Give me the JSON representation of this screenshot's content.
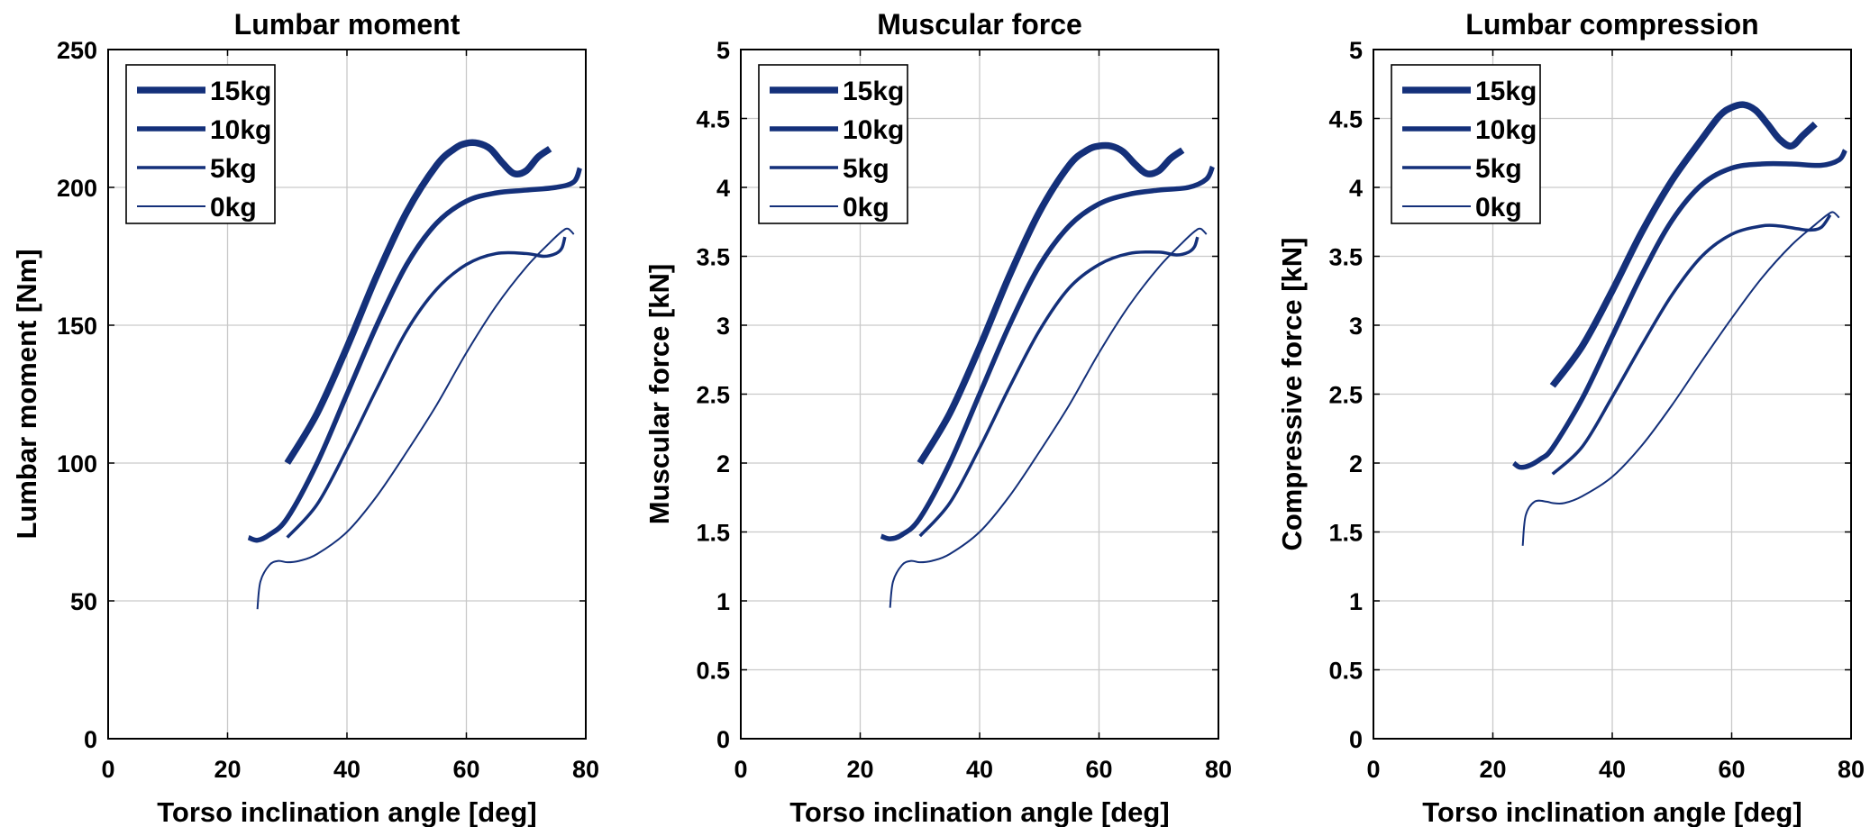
{
  "figure": {
    "series_color": "#14307a"
  },
  "chart_data": [
    {
      "type": "line",
      "title": "Lumbar moment",
      "xlabel": "Torso inclination angle [deg]",
      "ylabel": "Lumbar moment [Nm]",
      "xlim": [
        0,
        80
      ],
      "ylim": [
        0,
        250
      ],
      "xticks": [
        0,
        20,
        40,
        60,
        80
      ],
      "yticks": [
        0,
        50,
        100,
        150,
        200,
        250
      ],
      "xtick_labels": [
        "0",
        "20",
        "40",
        "60",
        "80"
      ],
      "ytick_labels": [
        "0",
        "50",
        "100",
        "150",
        "200",
        "250"
      ],
      "grid": true,
      "legend_position": "top-left",
      "series": [
        {
          "name": "15kg",
          "x": [
            30,
            35,
            40,
            45,
            50,
            55,
            58,
            60,
            62,
            64,
            66,
            68,
            70,
            72,
            74
          ],
          "y": [
            100,
            118,
            142,
            168,
            191,
            208,
            214,
            216,
            216,
            214,
            209,
            205,
            206,
            211,
            214
          ]
        },
        {
          "name": "10kg",
          "x": [
            23.5,
            25,
            27,
            30,
            35,
            40,
            45,
            50,
            55,
            60,
            65,
            70,
            75,
            78,
            79
          ],
          "y": [
            73,
            72,
            74,
            80,
            100,
            125,
            150,
            172,
            187,
            195,
            198,
            199,
            200,
            202,
            207
          ]
        },
        {
          "name": "5kg",
          "x": [
            30,
            35,
            40,
            45,
            50,
            55,
            60,
            65,
            70,
            73,
            75,
            76,
            76.5
          ],
          "y": [
            73,
            85,
            105,
            127,
            148,
            163,
            172,
            176,
            176,
            175,
            176,
            178,
            182
          ]
        },
        {
          "name": "0kg",
          "x": [
            25,
            25.5,
            27,
            28.5,
            30,
            32,
            35,
            40,
            45,
            50,
            55,
            60,
            65,
            70,
            74,
            76,
            77,
            78
          ],
          "y": [
            47,
            57,
            63,
            64.5,
            64,
            64.5,
            67,
            75,
            88,
            104,
            121,
            140,
            157,
            171,
            180,
            184,
            185,
            183
          ]
        }
      ]
    },
    {
      "type": "line",
      "title": "Muscular force",
      "xlabel": "Torso inclination angle [deg]",
      "ylabel": "Muscular force [kN]",
      "xlim": [
        0,
        80
      ],
      "ylim": [
        0,
        5
      ],
      "xticks": [
        0,
        20,
        40,
        60,
        80
      ],
      "yticks": [
        0,
        0.5,
        1,
        1.5,
        2,
        2.5,
        3,
        3.5,
        4,
        4.5,
        5
      ],
      "xtick_labels": [
        "0",
        "20",
        "40",
        "60",
        "80"
      ],
      "ytick_labels": [
        "0",
        "0.5",
        "1",
        "1.5",
        "2",
        "2.5",
        "3",
        "3.5",
        "4",
        "4.5",
        "5"
      ],
      "grid": true,
      "legend_position": "top-left",
      "series": [
        {
          "name": "15kg",
          "x": [
            30,
            35,
            40,
            45,
            50,
            55,
            58,
            60,
            62,
            64,
            66,
            68,
            70,
            72,
            74
          ],
          "y": [
            2.0,
            2.36,
            2.84,
            3.36,
            3.82,
            4.16,
            4.27,
            4.3,
            4.3,
            4.26,
            4.17,
            4.1,
            4.12,
            4.21,
            4.27
          ]
        },
        {
          "name": "10kg",
          "x": [
            23.5,
            25,
            27,
            30,
            35,
            40,
            45,
            50,
            55,
            60,
            65,
            70,
            75,
            78,
            79
          ],
          "y": [
            1.47,
            1.45,
            1.48,
            1.6,
            2.0,
            2.5,
            3.0,
            3.43,
            3.72,
            3.88,
            3.95,
            3.98,
            4.0,
            4.06,
            4.15
          ]
        },
        {
          "name": "5kg",
          "x": [
            30,
            35,
            40,
            45,
            50,
            55,
            60,
            65,
            70,
            73,
            75,
            76,
            76.5
          ],
          "y": [
            1.47,
            1.71,
            2.11,
            2.55,
            2.96,
            3.27,
            3.44,
            3.52,
            3.53,
            3.51,
            3.53,
            3.57,
            3.64
          ]
        },
        {
          "name": "0kg",
          "x": [
            25,
            25.5,
            27,
            28.5,
            30,
            32,
            35,
            40,
            45,
            50,
            55,
            60,
            65,
            70,
            74,
            76,
            77,
            78
          ],
          "y": [
            0.95,
            1.14,
            1.26,
            1.29,
            1.28,
            1.29,
            1.34,
            1.5,
            1.76,
            2.08,
            2.42,
            2.8,
            3.14,
            3.42,
            3.6,
            3.68,
            3.7,
            3.66
          ]
        }
      ]
    },
    {
      "type": "line",
      "title": "Lumbar compression",
      "xlabel": "Torso inclination angle [deg]",
      "ylabel": "Compressive force [kN]",
      "xlim": [
        0,
        80
      ],
      "ylim": [
        0,
        5
      ],
      "xticks": [
        0,
        20,
        40,
        60,
        80
      ],
      "yticks": [
        0,
        0.5,
        1,
        1.5,
        2,
        2.5,
        3,
        3.5,
        4,
        4.5,
        5
      ],
      "xtick_labels": [
        "0",
        "20",
        "40",
        "60",
        "80"
      ],
      "ytick_labels": [
        "0",
        "0.5",
        "1",
        "1.5",
        "2",
        "2.5",
        "3",
        "3.5",
        "4",
        "4.5",
        "5"
      ],
      "grid": true,
      "legend_position": "top-left",
      "series": [
        {
          "name": "15kg",
          "x": [
            30,
            35,
            40,
            45,
            50,
            55,
            58,
            60,
            62,
            64,
            66,
            68,
            70,
            72,
            74
          ],
          "y": [
            2.56,
            2.85,
            3.25,
            3.68,
            4.05,
            4.35,
            4.52,
            4.58,
            4.6,
            4.56,
            4.46,
            4.35,
            4.3,
            4.38,
            4.46
          ]
        },
        {
          "name": "10kg",
          "x": [
            23.5,
            24.5,
            26,
            28,
            30,
            35,
            40,
            45,
            50,
            55,
            60,
            65,
            70,
            75,
            78,
            79
          ],
          "y": [
            2.0,
            1.97,
            1.98,
            2.03,
            2.11,
            2.47,
            2.92,
            3.37,
            3.76,
            4.02,
            4.14,
            4.17,
            4.17,
            4.16,
            4.2,
            4.27
          ]
        },
        {
          "name": "5kg",
          "x": [
            30,
            35,
            40,
            45,
            50,
            55,
            60,
            65,
            68,
            71,
            73,
            75,
            76.5
          ],
          "y": [
            1.92,
            2.12,
            2.48,
            2.86,
            3.22,
            3.5,
            3.66,
            3.72,
            3.72,
            3.7,
            3.69,
            3.71,
            3.8
          ]
        },
        {
          "name": "0kg",
          "x": [
            25,
            25.5,
            27,
            29,
            30,
            32,
            35,
            40,
            45,
            50,
            55,
            60,
            65,
            70,
            74,
            76,
            77,
            78
          ],
          "y": [
            1.4,
            1.62,
            1.72,
            1.72,
            1.71,
            1.71,
            1.76,
            1.9,
            2.13,
            2.42,
            2.74,
            3.05,
            3.34,
            3.58,
            3.73,
            3.8,
            3.82,
            3.78
          ]
        }
      ]
    }
  ]
}
